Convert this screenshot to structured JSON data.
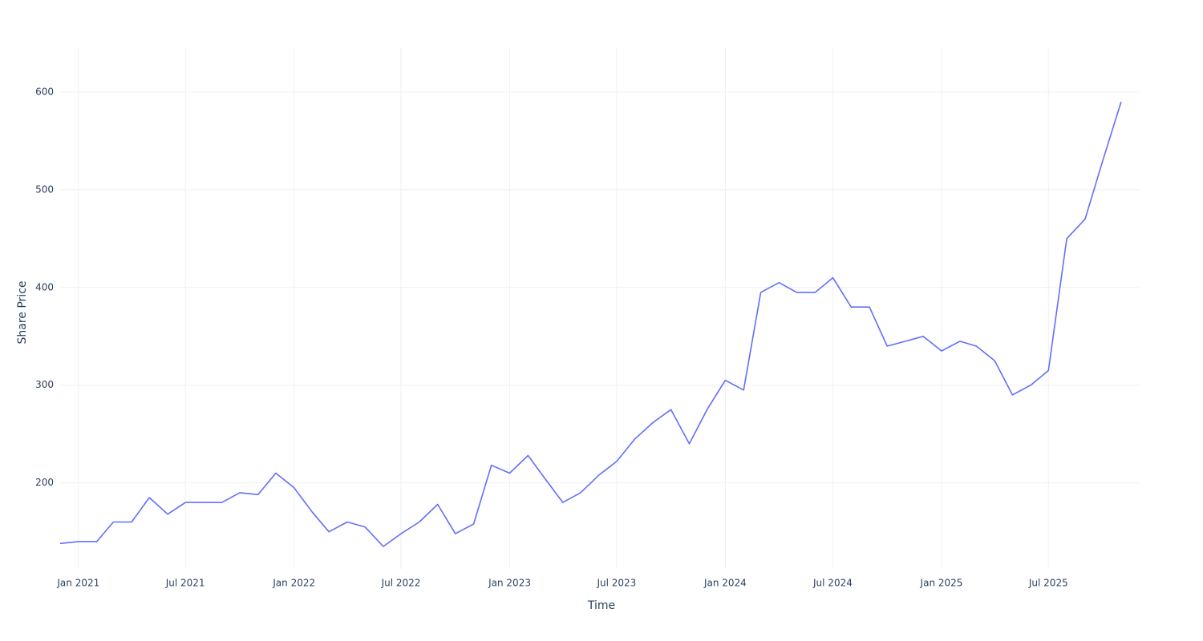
{
  "chart_data": {
    "type": "line",
    "x_label": "Time",
    "y_label": "Share Price",
    "x": [
      "2020-12",
      "2021-01",
      "2021-02",
      "2021-03",
      "2021-04",
      "2021-05",
      "2021-06",
      "2021-07",
      "2021-08",
      "2021-09",
      "2021-10",
      "2021-11",
      "2021-12",
      "2022-01",
      "2022-02",
      "2022-03",
      "2022-04",
      "2022-05",
      "2022-06",
      "2022-07",
      "2022-08",
      "2022-09",
      "2022-10",
      "2022-11",
      "2022-12",
      "2023-01",
      "2023-02",
      "2023-03",
      "2023-04",
      "2023-05",
      "2023-06",
      "2023-07",
      "2023-08",
      "2023-09",
      "2023-10",
      "2023-11",
      "2023-12",
      "2024-01",
      "2024-02",
      "2024-03",
      "2024-04",
      "2024-05",
      "2024-06",
      "2024-07",
      "2024-08",
      "2024-09",
      "2024-10",
      "2024-11",
      "2024-12",
      "2025-01",
      "2025-02",
      "2025-03",
      "2025-04",
      "2025-05",
      "2025-06",
      "2025-07",
      "2025-08",
      "2025-09",
      "2025-10",
      "2025-11"
    ],
    "series": [
      {
        "name": "Share Price",
        "color": "#636efa",
        "values": [
          138,
          140,
          140,
          160,
          160,
          185,
          168,
          180,
          180,
          180,
          190,
          188,
          210,
          195,
          170,
          150,
          160,
          155,
          135,
          148,
          160,
          178,
          148,
          158,
          218,
          210,
          228,
          205,
          180,
          190,
          208,
          222,
          245,
          262,
          275,
          240,
          275,
          305,
          295,
          395,
          405,
          395,
          395,
          410,
          380,
          380,
          340,
          345,
          350,
          335,
          345,
          340,
          325,
          290,
          300,
          315,
          450,
          470,
          530,
          590
        ]
      }
    ],
    "xlim": [
      "2020-12",
      "2025-12"
    ],
    "xticks": [
      {
        "value": "2021-01",
        "label": "Jan 2021"
      },
      {
        "value": "2021-07",
        "label": "Jul 2021"
      },
      {
        "value": "2022-01",
        "label": "Jan 2022"
      },
      {
        "value": "2022-07",
        "label": "Jul 2022"
      },
      {
        "value": "2023-01",
        "label": "Jan 2023"
      },
      {
        "value": "2023-07",
        "label": "Jul 2023"
      },
      {
        "value": "2024-01",
        "label": "Jan 2024"
      },
      {
        "value": "2024-07",
        "label": "Jul 2024"
      },
      {
        "value": "2025-01",
        "label": "Jan 2025"
      },
      {
        "value": "2025-07",
        "label": "Jul 2025"
      }
    ],
    "ylim": [
      112,
      645
    ],
    "yticks": [
      200,
      300,
      400,
      500,
      600
    ],
    "grid": true
  }
}
